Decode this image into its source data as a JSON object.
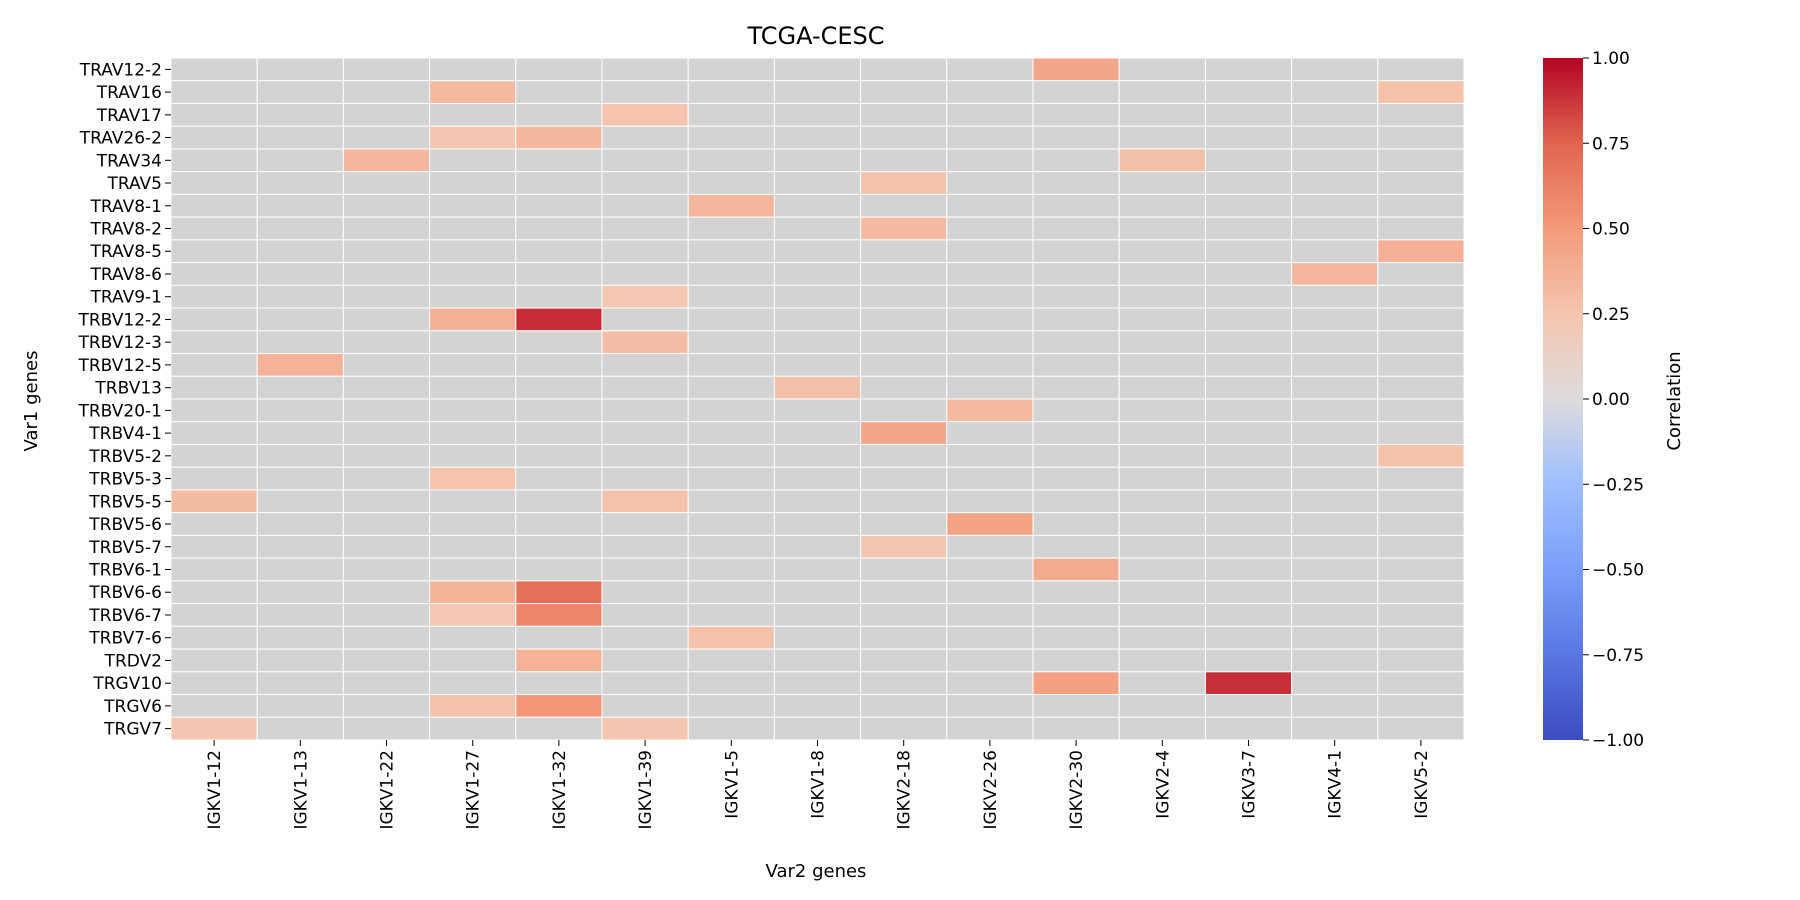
{
  "chart_data": {
    "type": "heatmap",
    "title": "TCGA-CESC",
    "xlabel": "Var2 genes",
    "ylabel": "Var1 genes",
    "x_categories": [
      "IGKV1-12",
      "IGKV1-13",
      "IGKV1-22",
      "IGKV1-27",
      "IGKV1-32",
      "IGKV1-39",
      "IGKV1-5",
      "IGKV1-8",
      "IGKV2-18",
      "IGKV2-26",
      "IGKV2-30",
      "IGKV2-4",
      "IGKV3-7",
      "IGKV4-1",
      "IGKV5-2"
    ],
    "y_categories": [
      "TRAV12-2",
      "TRAV16",
      "TRAV17",
      "TRAV26-2",
      "TRAV34",
      "TRAV5",
      "TRAV8-1",
      "TRAV8-2",
      "TRAV8-5",
      "TRAV8-6",
      "TRAV9-1",
      "TRBV12-2",
      "TRBV12-3",
      "TRBV12-5",
      "TRBV13",
      "TRBV20-1",
      "TRBV4-1",
      "TRBV5-2",
      "TRBV5-3",
      "TRBV5-5",
      "TRBV5-6",
      "TRBV5-7",
      "TRBV6-1",
      "TRBV6-6",
      "TRBV6-7",
      "TRBV7-6",
      "TRDV2",
      "TRGV10",
      "TRGV6",
      "TRGV7"
    ],
    "values": [
      [
        null,
        null,
        null,
        null,
        null,
        null,
        null,
        null,
        null,
        null,
        0.43,
        null,
        null,
        null,
        null
      ],
      [
        null,
        null,
        null,
        0.32,
        null,
        null,
        null,
        null,
        null,
        null,
        null,
        null,
        null,
        null,
        0.28
      ],
      [
        null,
        null,
        null,
        null,
        null,
        0.26,
        null,
        null,
        null,
        null,
        null,
        null,
        null,
        null,
        null
      ],
      [
        null,
        null,
        null,
        0.25,
        0.33,
        null,
        null,
        null,
        null,
        null,
        null,
        null,
        null,
        null,
        null
      ],
      [
        null,
        null,
        0.34,
        null,
        null,
        null,
        null,
        null,
        null,
        null,
        null,
        0.29,
        null,
        null,
        null
      ],
      [
        null,
        null,
        null,
        null,
        null,
        null,
        null,
        null,
        0.28,
        null,
        null,
        null,
        null,
        null,
        null
      ],
      [
        null,
        null,
        null,
        null,
        null,
        null,
        0.34,
        null,
        null,
        null,
        null,
        null,
        null,
        null,
        null
      ],
      [
        null,
        null,
        null,
        null,
        null,
        null,
        null,
        null,
        0.32,
        null,
        null,
        null,
        null,
        null,
        null
      ],
      [
        null,
        null,
        null,
        null,
        null,
        null,
        null,
        null,
        null,
        null,
        null,
        null,
        null,
        null,
        0.38
      ],
      [
        null,
        null,
        null,
        null,
        null,
        null,
        null,
        null,
        null,
        null,
        null,
        null,
        null,
        0.34,
        null
      ],
      [
        null,
        null,
        null,
        null,
        null,
        0.24,
        null,
        null,
        null,
        null,
        null,
        null,
        null,
        null,
        null
      ],
      [
        null,
        null,
        null,
        0.38,
        0.9,
        null,
        null,
        null,
        null,
        null,
        null,
        null,
        null,
        null,
        null
      ],
      [
        null,
        null,
        null,
        null,
        null,
        0.3,
        null,
        null,
        null,
        null,
        null,
        null,
        null,
        null,
        null
      ],
      [
        null,
        0.36,
        null,
        null,
        null,
        null,
        null,
        null,
        null,
        null,
        null,
        null,
        null,
        null,
        null
      ],
      [
        null,
        null,
        null,
        null,
        null,
        null,
        null,
        0.29,
        null,
        null,
        null,
        null,
        null,
        null,
        null
      ],
      [
        null,
        null,
        null,
        null,
        null,
        null,
        null,
        null,
        null,
        0.32,
        null,
        null,
        null,
        null,
        null
      ],
      [
        null,
        null,
        null,
        null,
        null,
        null,
        null,
        null,
        0.43,
        null,
        null,
        null,
        null,
        null,
        null
      ],
      [
        null,
        null,
        null,
        null,
        null,
        null,
        null,
        null,
        null,
        null,
        null,
        null,
        null,
        null,
        0.28
      ],
      [
        null,
        null,
        null,
        0.26,
        null,
        null,
        null,
        null,
        null,
        null,
        null,
        null,
        null,
        null,
        null
      ],
      [
        0.31,
        null,
        null,
        null,
        null,
        0.27,
        null,
        null,
        null,
        null,
        null,
        null,
        null,
        null,
        null
      ],
      [
        null,
        null,
        null,
        null,
        null,
        null,
        null,
        null,
        null,
        0.45,
        null,
        null,
        null,
        null,
        null
      ],
      [
        null,
        null,
        null,
        null,
        null,
        null,
        null,
        null,
        0.25,
        null,
        null,
        null,
        null,
        null,
        null
      ],
      [
        null,
        null,
        null,
        null,
        null,
        null,
        null,
        null,
        null,
        null,
        0.41,
        null,
        null,
        null,
        null
      ],
      [
        null,
        null,
        null,
        0.35,
        0.7,
        null,
        null,
        null,
        null,
        null,
        null,
        null,
        null,
        null,
        null
      ],
      [
        null,
        null,
        null,
        0.24,
        0.6,
        null,
        null,
        null,
        null,
        null,
        null,
        null,
        null,
        null,
        null
      ],
      [
        null,
        null,
        null,
        null,
        null,
        null,
        0.27,
        null,
        null,
        null,
        null,
        null,
        null,
        null,
        null
      ],
      [
        null,
        null,
        null,
        null,
        0.36,
        null,
        null,
        null,
        null,
        null,
        null,
        null,
        null,
        null,
        null
      ],
      [
        null,
        null,
        null,
        null,
        null,
        null,
        null,
        null,
        null,
        null,
        0.46,
        null,
        0.89,
        null,
        null
      ],
      [
        null,
        null,
        null,
        0.28,
        0.52,
        null,
        null,
        null,
        null,
        null,
        null,
        null,
        null,
        null,
        null
      ],
      [
        0.25,
        null,
        null,
        null,
        null,
        0.25,
        null,
        null,
        null,
        null,
        null,
        null,
        null,
        null,
        null
      ]
    ],
    "missing_color": "#d3d3d3",
    "colormap": "coolwarm",
    "vmin": -1.0,
    "vmax": 1.0,
    "colorbar": {
      "label": "Correlation",
      "ticks": [
        1.0,
        0.75,
        0.5,
        0.25,
        0.0,
        -0.25,
        -0.5,
        -0.75,
        -1.0
      ],
      "tick_labels": [
        "1.00",
        "0.75",
        "0.50",
        "0.25",
        "0.00",
        "−0.25",
        "−0.50",
        "−0.75",
        "−1.00"
      ],
      "placement": "right"
    },
    "grid": true
  }
}
